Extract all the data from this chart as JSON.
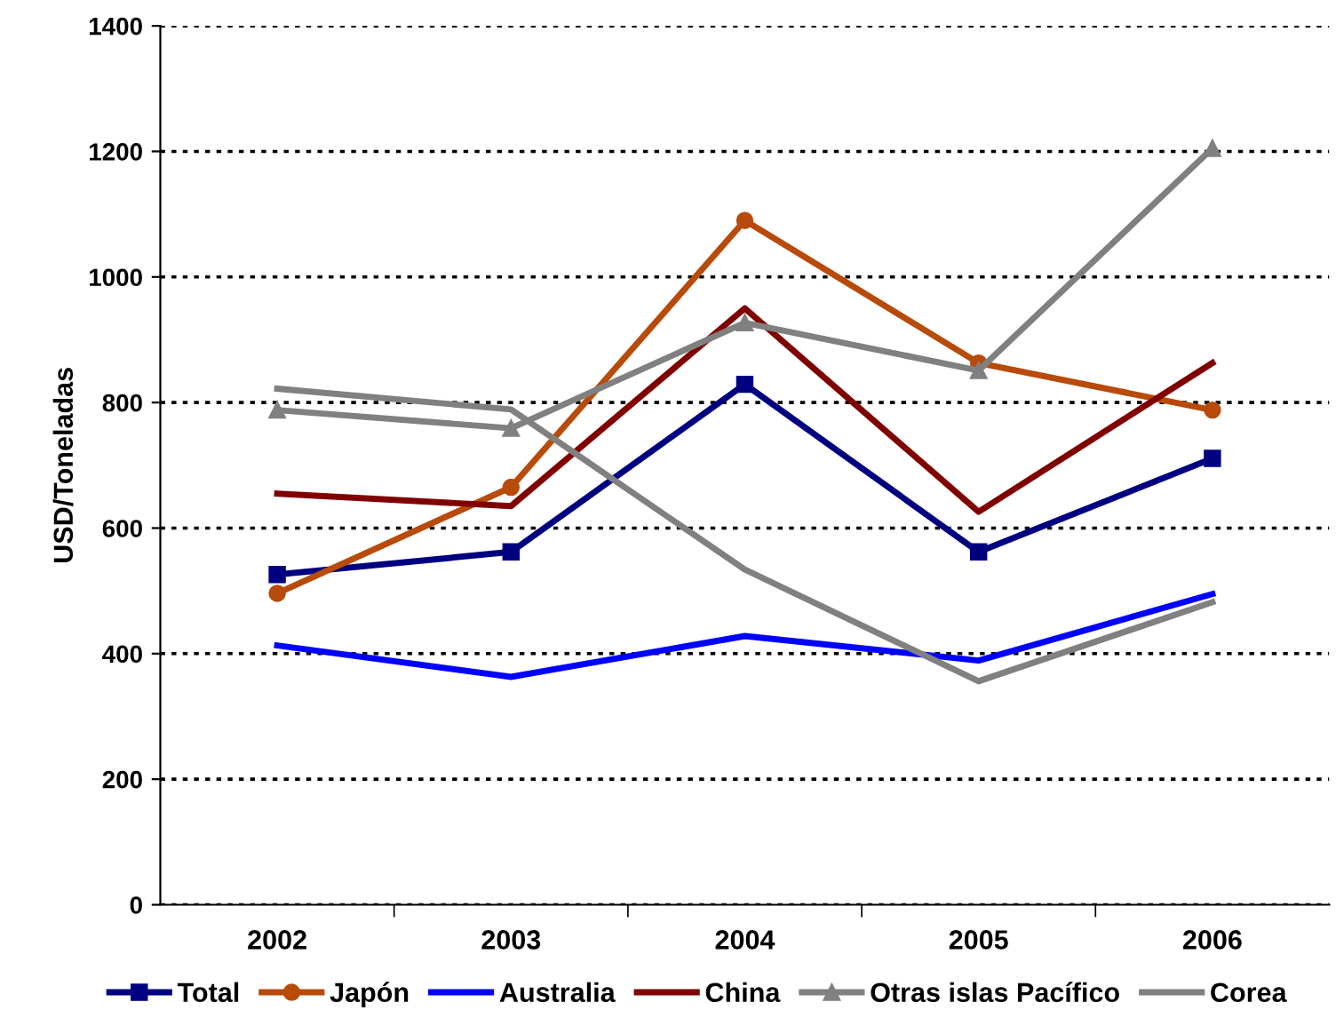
{
  "chart_data": {
    "type": "line",
    "ylabel": "USD/Toneladas",
    "categories": [
      "2002",
      "2003",
      "2004",
      "2005",
      "2006"
    ],
    "series": [
      {
        "name": "Total",
        "color": "#000080",
        "marker": "square",
        "values": [
          526,
          562,
          829,
          562,
          711
        ]
      },
      {
        "name": "Japón",
        "color": "#b84a0a",
        "marker": "circle",
        "values": [
          496,
          665,
          1090,
          863,
          788
        ]
      },
      {
        "name": "Australia",
        "color": "#0000ff",
        "marker": "none",
        "values": [
          413,
          363,
          428,
          389,
          495
        ]
      },
      {
        "name": "China",
        "color": "#800000",
        "marker": "none",
        "values": [
          655,
          635,
          950,
          626,
          863
        ]
      },
      {
        "name": "Otras islas Pacífico",
        "color": "#808080",
        "marker": "triangle",
        "values": [
          788,
          759,
          927,
          851,
          1205
        ]
      },
      {
        "name": "Corea",
        "color": "#808080",
        "marker": "none",
        "values": [
          822,
          789,
          534,
          356,
          482
        ]
      }
    ],
    "ylim": [
      0,
      1400
    ],
    "yticks": [
      0,
      200,
      400,
      600,
      800,
      1000,
      1200,
      1400
    ],
    "grid": "y",
    "legend": "bottom"
  }
}
